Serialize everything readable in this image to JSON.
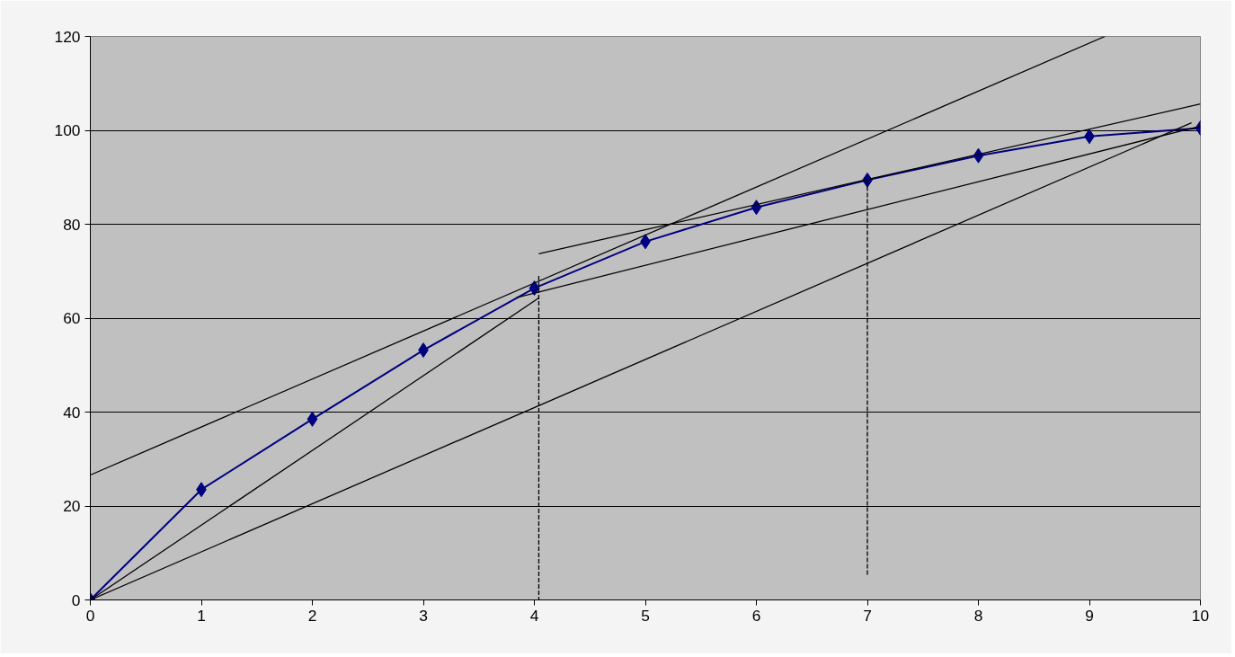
{
  "chart_data": {
    "type": "line",
    "x": [
      0,
      1,
      2,
      3,
      4,
      5,
      6,
      7,
      8,
      9,
      10
    ],
    "series": [
      {
        "color": "#000080",
        "marker": "diamond",
        "values": [
          0,
          23.5,
          38.5,
          53.2,
          66.4,
          76.3,
          83.6,
          89.4,
          94.6,
          98.7,
          100.5
        ]
      },
      {
        "color": "#000000",
        "marker": "none",
        "x": [
          0,
          9.14
        ],
        "values": [
          26.6,
          120
        ]
      },
      {
        "color": "#000000",
        "marker": "none",
        "x": [
          0,
          4.04
        ],
        "values": [
          0,
          64.3
        ]
      },
      {
        "color": "#000000",
        "marker": "none",
        "x": [
          3.84,
          10
        ],
        "values": [
          64.4,
          100.9
        ]
      },
      {
        "color": "#000000",
        "marker": "none",
        "x": [
          0,
          9.92
        ],
        "values": [
          0,
          101.6
        ]
      },
      {
        "color": "#000000",
        "marker": "none",
        "x": [
          4.04,
          10
        ],
        "values": [
          73.7,
          105.6
        ]
      },
      {
        "color": "#000000",
        "marker": "none",
        "line_style": "dashed",
        "x": [
          4.04,
          4.04
        ],
        "values": [
          69,
          0
        ]
      },
      {
        "color": "#000000",
        "marker": "none",
        "line_style": "dashed",
        "x": [
          7,
          7
        ],
        "values": [
          89.4,
          5
        ]
      }
    ],
    "xlim": [
      0,
      10
    ],
    "xticks": [
      0,
      1,
      2,
      3,
      4,
      5,
      6,
      7,
      8,
      9,
      10
    ],
    "ylim": [
      0,
      120
    ],
    "yticks": [
      0,
      20,
      40,
      60,
      80,
      100,
      120
    ],
    "grid": "y"
  }
}
